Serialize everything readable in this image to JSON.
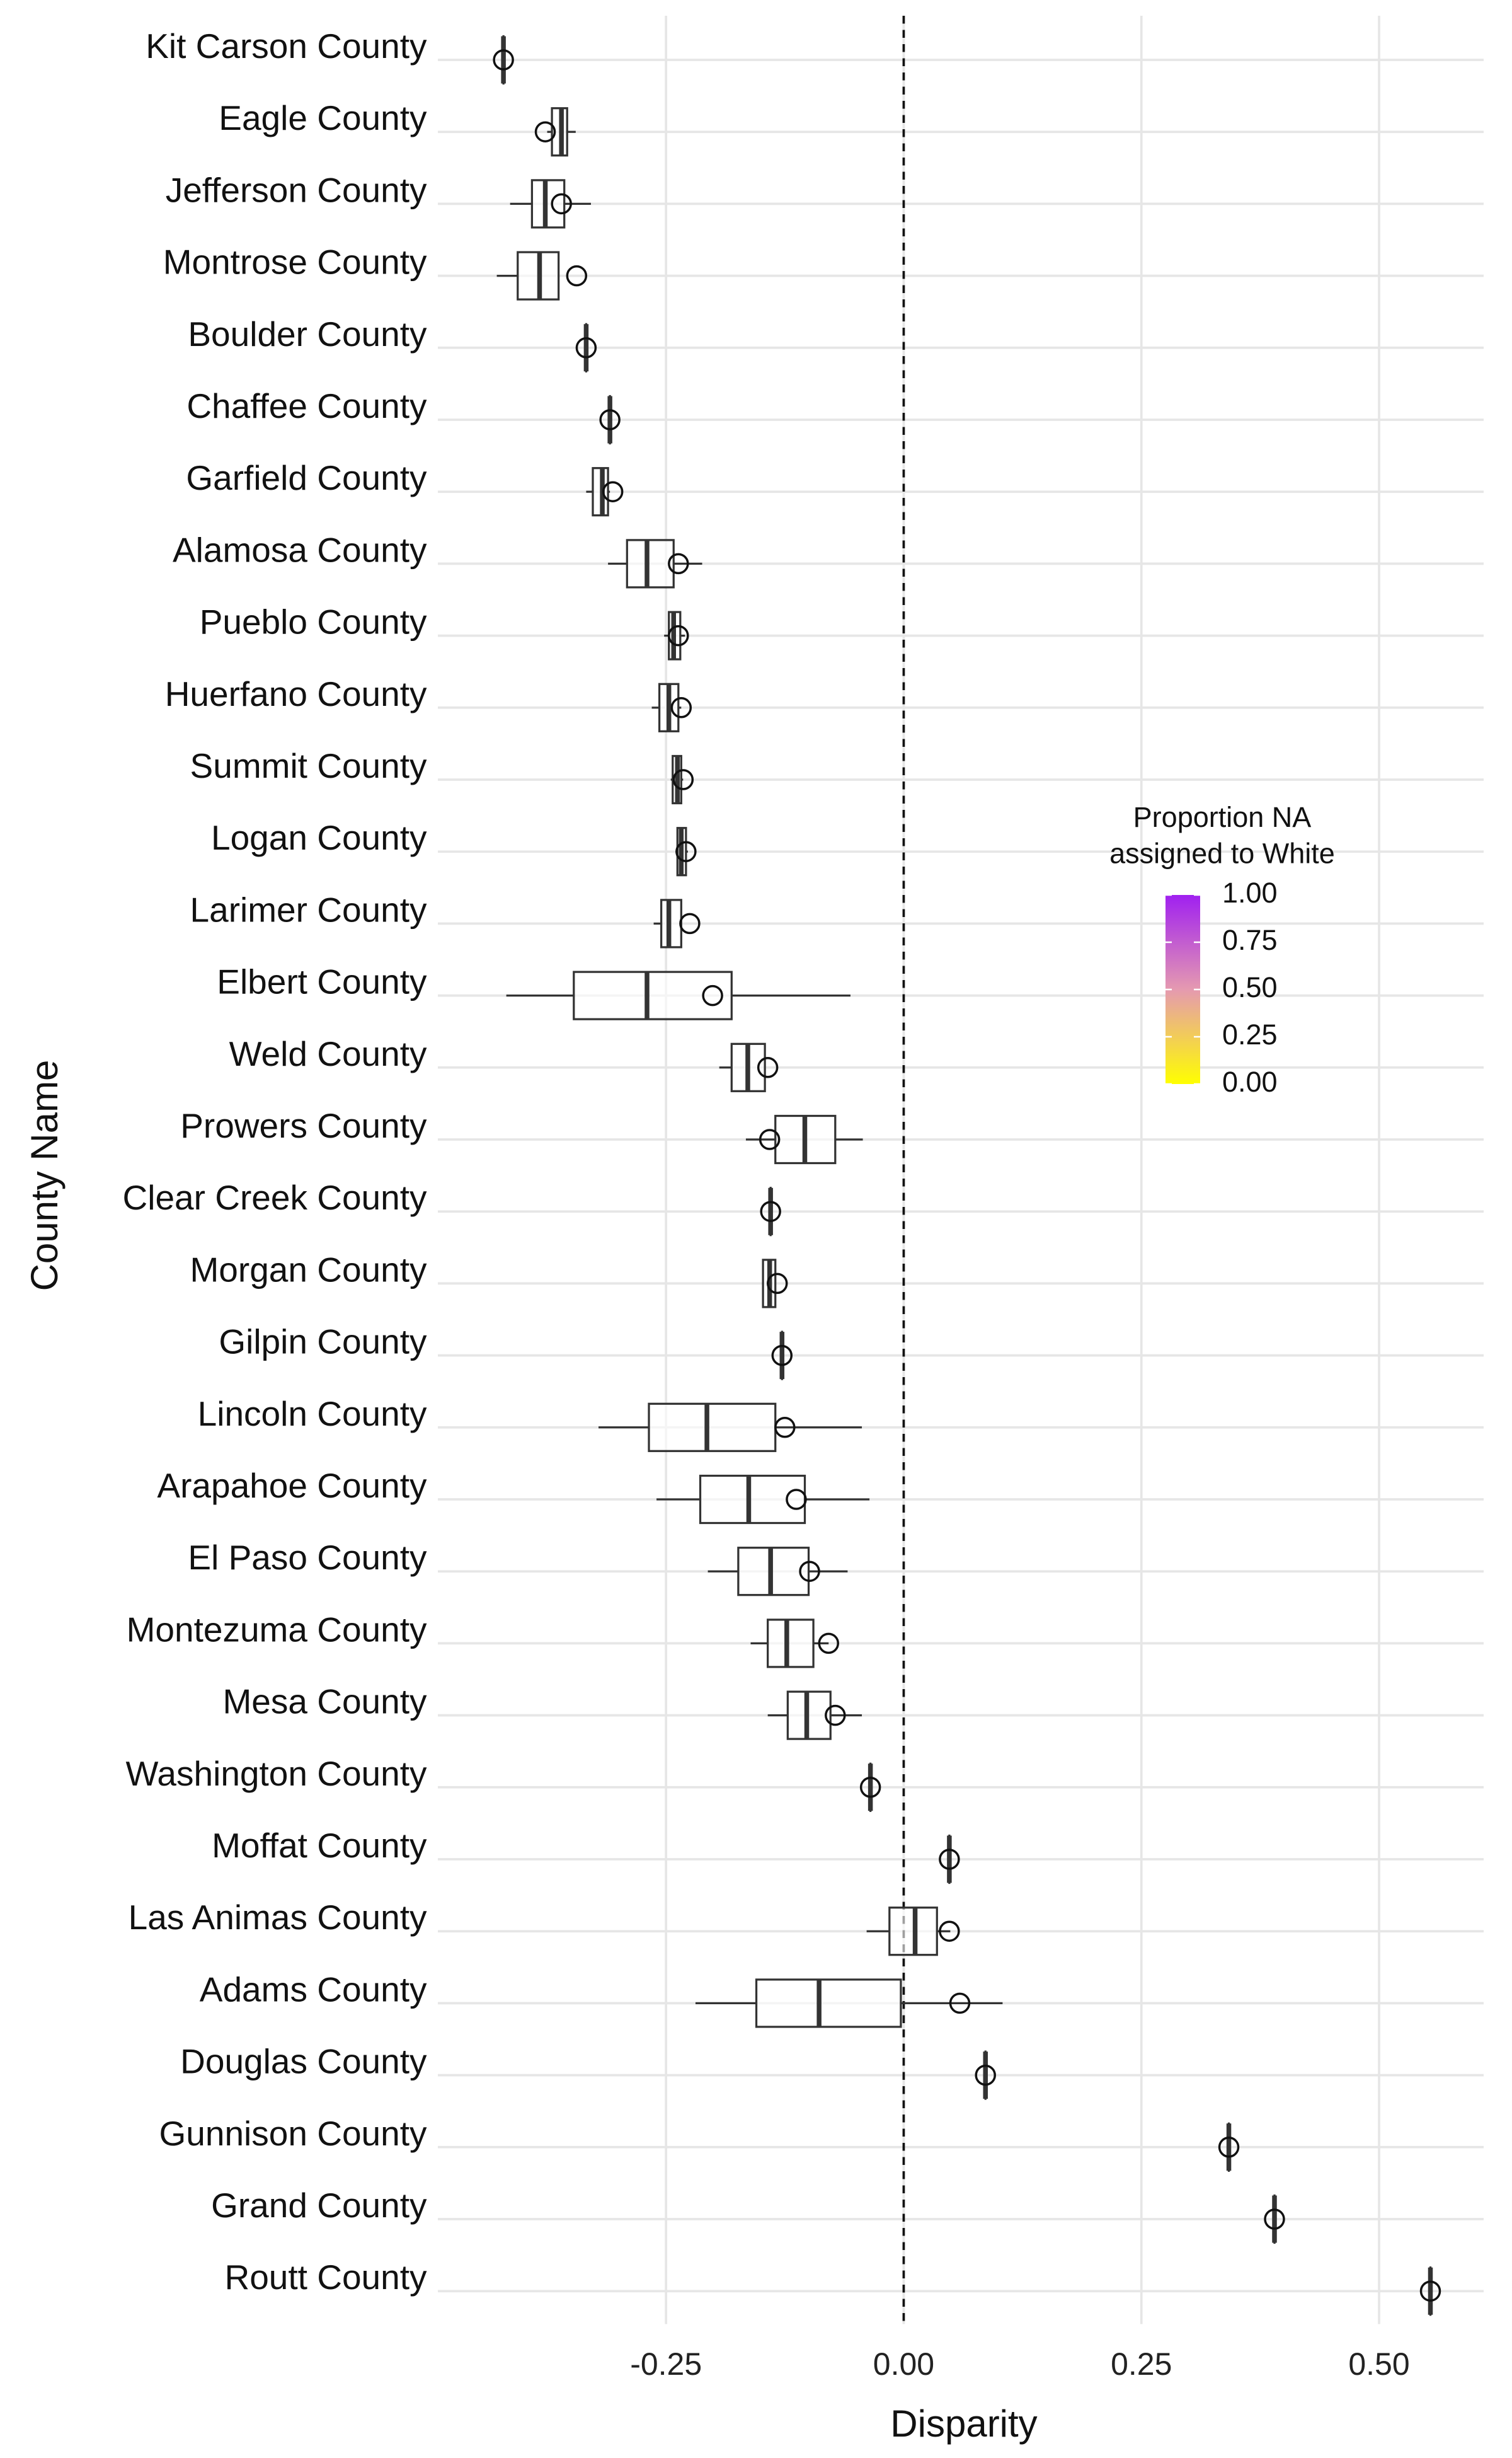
{
  "chart_data": {
    "type": "boxplot",
    "x_label": "Disparity",
    "y_label": "County Name",
    "categories": [
      "Kit Carson County",
      "Eagle County",
      "Jefferson County",
      "Montrose County",
      "Boulder County",
      "Chaffee County",
      "Garfield County",
      "Alamosa County",
      "Pueblo County",
      "Huerfano County",
      "Summit County",
      "Logan County",
      "Larimer County",
      "Elbert County",
      "Weld County",
      "Prowers County",
      "Clear Creek County",
      "Morgan County",
      "Gilpin County",
      "Lincoln County",
      "Arapahoe County",
      "El Paso County",
      "Montezuma County",
      "Mesa County",
      "Washington County",
      "Moffat County",
      "Las Animas County",
      "Adams County",
      "Douglas County",
      "Gunnison County",
      "Grand County",
      "Routt County"
    ],
    "min": [
      -0.421,
      -0.375,
      -0.414,
      -0.428,
      -0.334,
      -0.309,
      -0.334,
      -0.311,
      -0.252,
      -0.265,
      -0.245,
      -0.24,
      -0.263,
      -0.418,
      -0.194,
      -0.166,
      -0.14,
      -0.148,
      -0.128,
      -0.321,
      -0.26,
      -0.206,
      -0.161,
      -0.143,
      -0.035,
      0.048,
      -0.039,
      -0.219,
      0.086,
      0.342,
      0.39,
      0.554
    ],
    "q1": [
      -0.421,
      -0.37,
      -0.391,
      -0.406,
      -0.334,
      -0.309,
      -0.327,
      -0.291,
      -0.247,
      -0.257,
      -0.243,
      -0.238,
      -0.255,
      -0.347,
      -0.181,
      -0.135,
      -0.14,
      -0.148,
      -0.128,
      -0.268,
      -0.214,
      -0.174,
      -0.143,
      -0.122,
      -0.035,
      0.048,
      -0.015,
      -0.155,
      0.086,
      0.342,
      0.39,
      0.554
    ],
    "median": [
      -0.421,
      -0.36,
      -0.377,
      -0.383,
      -0.334,
      -0.309,
      -0.317,
      -0.27,
      -0.242,
      -0.247,
      -0.238,
      -0.234,
      -0.247,
      -0.27,
      -0.164,
      -0.104,
      -0.14,
      -0.141,
      -0.128,
      -0.207,
      -0.163,
      -0.14,
      -0.123,
      -0.102,
      -0.035,
      0.048,
      0.012,
      -0.089,
      0.086,
      0.342,
      0.39,
      0.554
    ],
    "q3": [
      -0.421,
      -0.354,
      -0.357,
      -0.363,
      -0.334,
      -0.309,
      -0.311,
      -0.242,
      -0.235,
      -0.237,
      -0.234,
      -0.229,
      -0.234,
      -0.181,
      -0.146,
      -0.072,
      -0.14,
      -0.135,
      -0.128,
      -0.135,
      -0.104,
      -0.1,
      -0.095,
      -0.077,
      -0.035,
      0.048,
      0.035,
      -0.003,
      0.086,
      0.342,
      0.39,
      0.554
    ],
    "max": [
      -0.421,
      -0.345,
      -0.329,
      -0.363,
      -0.334,
      -0.309,
      -0.309,
      -0.212,
      -0.23,
      -0.234,
      -0.232,
      -0.227,
      -0.234,
      -0.056,
      -0.146,
      -0.043,
      -0.14,
      -0.135,
      -0.128,
      -0.044,
      -0.036,
      -0.059,
      -0.079,
      -0.044,
      -0.035,
      0.048,
      0.049,
      0.104,
      0.086,
      0.342,
      0.39,
      0.554
    ],
    "points": [
      -0.421,
      -0.377,
      -0.36,
      -0.344,
      -0.334,
      -0.309,
      -0.306,
      -0.237,
      -0.237,
      -0.234,
      -0.232,
      -0.229,
      -0.225,
      -0.201,
      -0.143,
      -0.141,
      -0.14,
      -0.133,
      -0.128,
      -0.125,
      -0.113,
      -0.099,
      -0.079,
      -0.072,
      -0.035,
      0.048,
      0.048,
      0.059,
      0.086,
      0.342,
      0.39,
      0.554
    ],
    "xlim": [
      -0.49,
      0.61
    ],
    "xticks": [
      -0.25,
      {
        "value": 0,
        "label": "0.00"
      },
      0.25,
      {
        "value": 0.5,
        "label": "0.50"
      }
    ],
    "vline": 0,
    "grid": true,
    "colorbar_title": [
      "Proportion NA",
      "assigned to White"
    ],
    "colorbar_colors": [
      "#ffff00",
      "#e59ab0",
      "#a020f0"
    ],
    "colorbar_lim": [
      0,
      1
    ],
    "colorbar_ticks": [
      {
        "value": 0,
        "label": "0.00"
      },
      0.25,
      {
        "value": 0.5,
        "label": "0.50"
      },
      0.75,
      {
        "value": 1,
        "label": "1.00"
      }
    ]
  }
}
